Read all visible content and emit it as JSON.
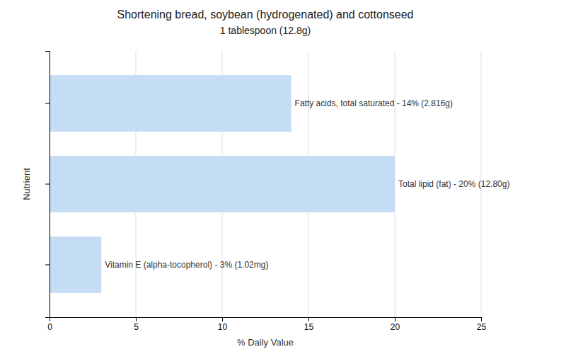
{
  "chart_data": {
    "type": "bar",
    "orientation": "horizontal",
    "title": "Shortening bread, soybean (hydrogenated) and cottonseed",
    "subtitle": "1 tablespoon (12.8g)",
    "xlabel": "% Daily Value",
    "ylabel": "Nutrient",
    "categories": [
      null,
      null,
      null
    ],
    "values": [
      14,
      20,
      3
    ],
    "value_labels": [
      "Fatty acids, total saturated - 14% (2.816g)",
      "Total lipid (fat) - 20% (12.80g)",
      "Vitamin E (alpha-tocopherol) - 3% (1.02mg)"
    ],
    "data_labels": true,
    "color": "#c5dcf5",
    "xlim": [
      0,
      25
    ],
    "xticks": [
      0,
      5,
      10,
      15,
      20,
      25
    ],
    "grid": true
  }
}
